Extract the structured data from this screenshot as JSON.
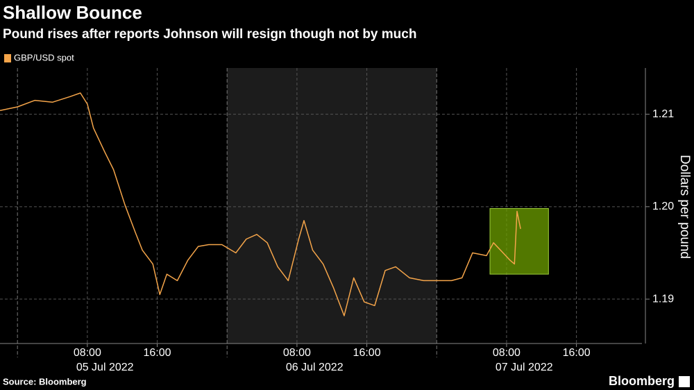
{
  "chart_data": {
    "type": "line",
    "title": "Shallow Bounce",
    "subtitle": "Pound rises after reports Johnson will resign though not by much",
    "y_label": "Dollars per pound",
    "source": "Source: Bloomberg",
    "brand": "Bloomberg",
    "x": [
      -2,
      0,
      2,
      4,
      6,
      7.2,
      8,
      8.7,
      10,
      11,
      12.3,
      13.5,
      14.3,
      15.5,
      16.3,
      17.1,
      18.3,
      19.5,
      20.7,
      21.9,
      23.4,
      25,
      26.2,
      27.4,
      28.6,
      29.8,
      31,
      32.2,
      32.8,
      33.8,
      35,
      36.2,
      37.4,
      38.5,
      39.7,
      40.9,
      42.1,
      43.3,
      44.9,
      46.5,
      48.1,
      49.7,
      50.9,
      52.1,
      53.7,
      54.5,
      55.6,
      56.4,
      56.9,
      57.2,
      57.6
    ],
    "series": [
      {
        "name": "GBP/USD spot",
        "color": "#f5a54a",
        "values": [
          1.2104,
          1.2108,
          1.2115,
          1.2113,
          1.2119,
          1.2123,
          1.2111,
          1.2085,
          1.2059,
          1.204,
          1.2002,
          1.1972,
          1.1953,
          1.1938,
          1.1905,
          1.1927,
          1.192,
          1.1942,
          1.1957,
          1.1959,
          1.1959,
          1.195,
          1.1965,
          1.197,
          1.1961,
          1.1935,
          1.192,
          1.1965,
          1.1985,
          1.1953,
          1.1938,
          1.1912,
          1.1882,
          1.1923,
          1.1897,
          1.1893,
          1.1931,
          1.1935,
          1.1923,
          1.192,
          1.192,
          1.192,
          1.1923,
          1.195,
          1.1947,
          1.1961,
          1.195,
          1.1942,
          1.1938,
          1.1995,
          1.1976
        ]
      }
    ],
    "xlim": [
      -2,
      71.5
    ],
    "xticks": [
      {
        "value": 8,
        "label": "08:00"
      },
      {
        "value": 16,
        "label": "16:00"
      },
      {
        "value": 32,
        "label": "08:00"
      },
      {
        "value": 40,
        "label": "16:00"
      },
      {
        "value": 56,
        "label": "08:00"
      },
      {
        "value": 64,
        "label": "16:00"
      }
    ],
    "day_breaks": [
      0,
      24,
      48
    ],
    "day_labels": [
      "05 Jul 2022",
      "06 Jul 2022",
      "07 Jul 2022"
    ],
    "shaded": [
      24,
      48
    ],
    "highlight": {
      "x": [
        54.1,
        60.8
      ],
      "y": [
        1.1927,
        1.1998
      ]
    },
    "ylim": [
      1.1852,
      1.215
    ],
    "yticks": [
      1.19,
      {
        "value": 1.2,
        "label": "1.20"
      },
      1.21
    ],
    "grid": true
  }
}
